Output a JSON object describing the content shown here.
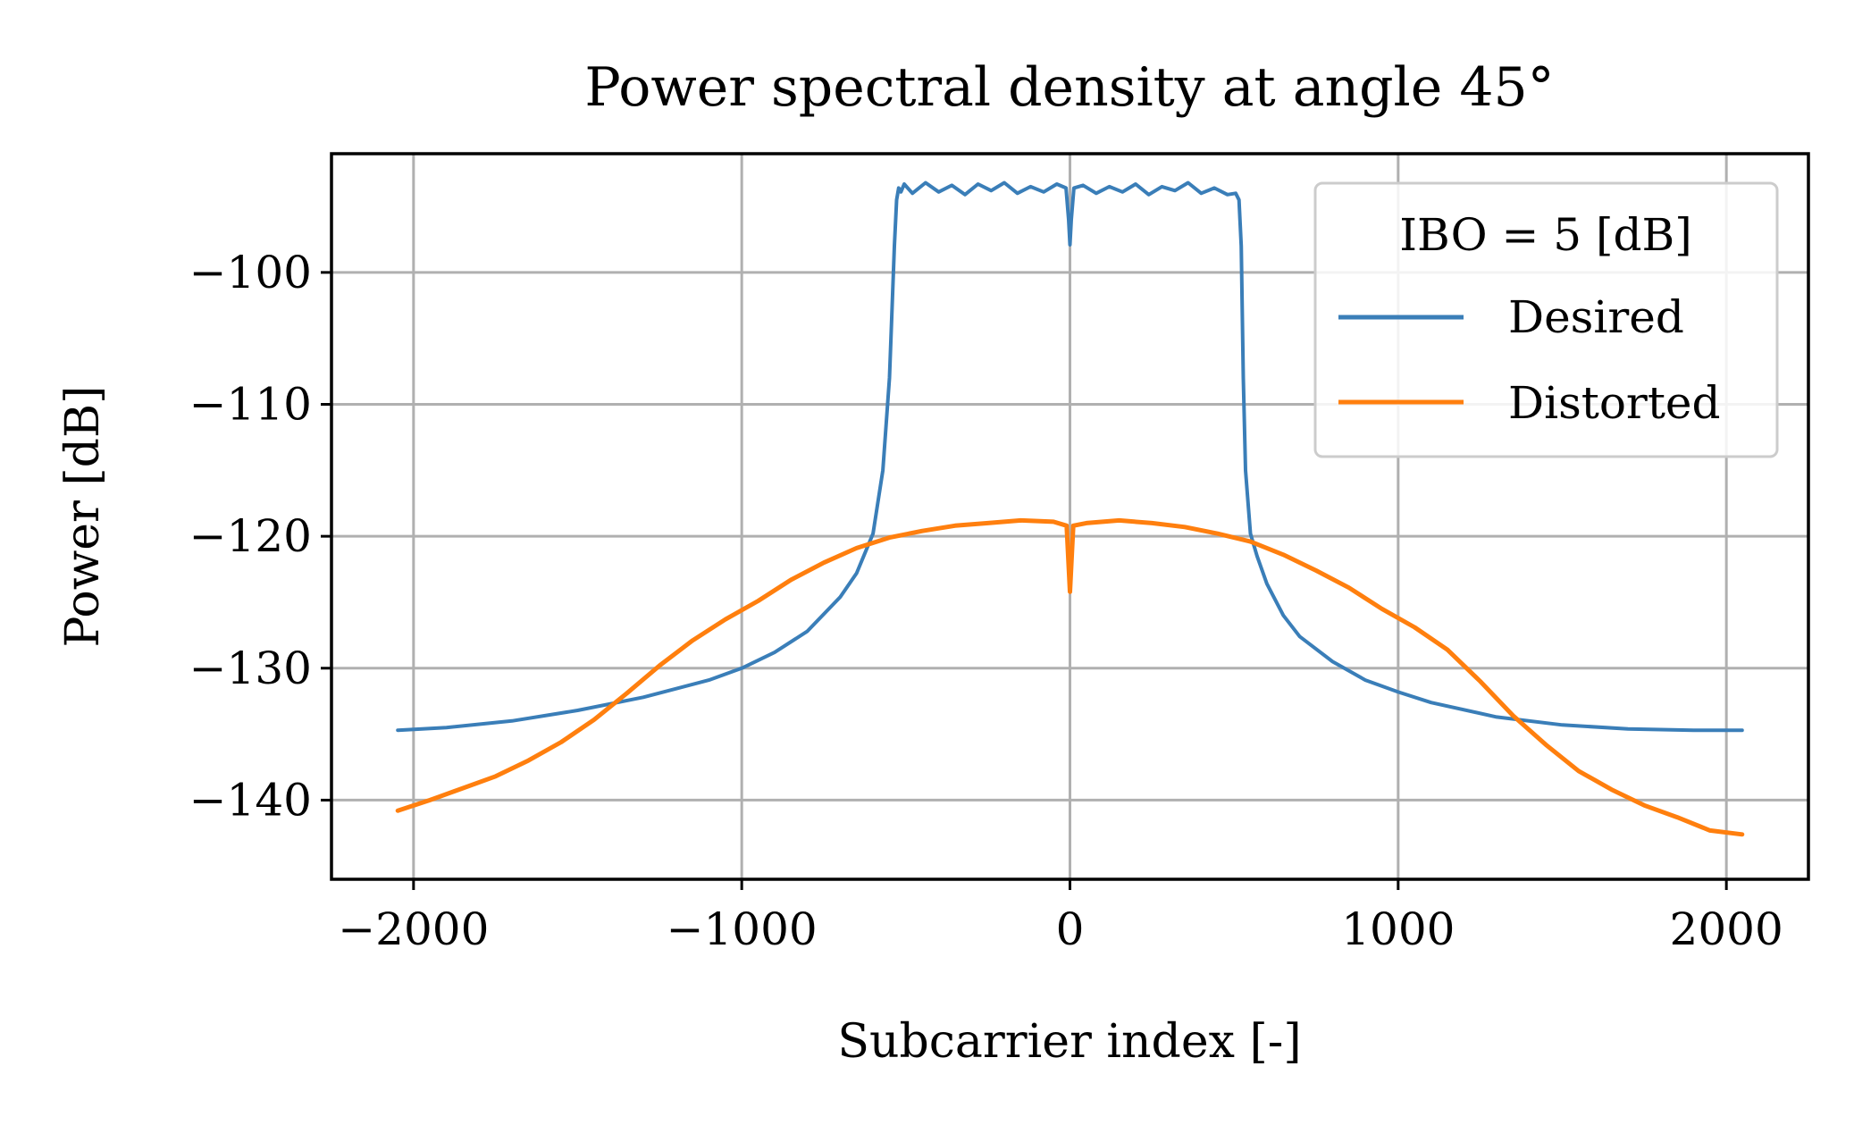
{
  "chart_data": {
    "type": "line",
    "title": "Power spectral density at angle 45°",
    "xlabel": "Subcarrier index [-]",
    "ylabel": "Power [dB]",
    "xlim": [
      -2250,
      2250
    ],
    "ylim": [
      -146,
      -91
    ],
    "xticks": [
      -2000,
      -1000,
      0,
      1000,
      2000
    ],
    "xtick_labels": [
      "−2000",
      "−1000",
      "0",
      "1000",
      "2000"
    ],
    "yticks": [
      -100,
      -110,
      -120,
      -130,
      -140
    ],
    "ytick_labels": [
      "−100",
      "−110",
      "−120",
      "−130",
      "−140"
    ],
    "grid": true,
    "legend": {
      "title": "IBO = 5 [dB]",
      "placement": "top-right"
    },
    "series": [
      {
        "name": "Desired",
        "color": "#3a7eb8",
        "x": [
          -2048,
          -1900,
          -1700,
          -1500,
          -1300,
          -1100,
          -1000,
          -900,
          -800,
          -700,
          -650,
          -600,
          -570,
          -550,
          -535,
          -528,
          -522,
          -515,
          -505,
          -480,
          -440,
          -400,
          -360,
          -320,
          -280,
          -240,
          -200,
          -160,
          -120,
          -80,
          -40,
          -12,
          -4,
          0,
          4,
          12,
          40,
          80,
          120,
          160,
          200,
          240,
          280,
          320,
          360,
          400,
          440,
          480,
          505,
          515,
          522,
          528,
          535,
          550,
          570,
          600,
          650,
          700,
          800,
          900,
          1000,
          1100,
          1300,
          1500,
          1700,
          1900,
          2048
        ],
        "y": [
          -134.7,
          -134.5,
          -134.0,
          -133.2,
          -132.2,
          -130.9,
          -130.0,
          -128.8,
          -127.2,
          -124.6,
          -122.8,
          -119.8,
          -115.0,
          -108.0,
          -98.0,
          -94.5,
          -93.6,
          -93.9,
          -93.3,
          -94.0,
          -93.2,
          -93.9,
          -93.4,
          -94.1,
          -93.3,
          -93.8,
          -93.2,
          -94.0,
          -93.5,
          -93.9,
          -93.3,
          -93.6,
          -96.0,
          -97.9,
          -96.0,
          -93.6,
          -93.4,
          -94.0,
          -93.5,
          -93.9,
          -93.3,
          -94.1,
          -93.5,
          -93.8,
          -93.2,
          -94.0,
          -93.6,
          -94.1,
          -94.0,
          -94.5,
          -98.0,
          -108.0,
          -115.0,
          -119.8,
          -121.5,
          -123.6,
          -126.0,
          -127.6,
          -129.5,
          -130.9,
          -131.8,
          -132.6,
          -133.7,
          -134.3,
          -134.6,
          -134.7,
          -134.7
        ]
      },
      {
        "name": "Distorted",
        "color": "#ff7f0e",
        "x": [
          -2048,
          -1950,
          -1850,
          -1750,
          -1650,
          -1550,
          -1450,
          -1350,
          -1250,
          -1150,
          -1050,
          -950,
          -850,
          -750,
          -650,
          -550,
          -450,
          -350,
          -250,
          -150,
          -50,
          -10,
          0,
          10,
          50,
          150,
          250,
          350,
          450,
          550,
          650,
          750,
          850,
          950,
          1050,
          1150,
          1250,
          1350,
          1450,
          1550,
          1650,
          1750,
          1850,
          1950,
          2048
        ],
        "y": [
          -140.8,
          -140.0,
          -139.1,
          -138.2,
          -137.0,
          -135.6,
          -133.9,
          -131.9,
          -129.8,
          -127.9,
          -126.3,
          -124.9,
          -123.3,
          -122.0,
          -120.9,
          -120.1,
          -119.6,
          -119.2,
          -119.0,
          -118.8,
          -118.9,
          -119.2,
          -124.2,
          -119.2,
          -119.0,
          -118.8,
          -119.0,
          -119.3,
          -119.8,
          -120.4,
          -121.4,
          -122.6,
          -123.9,
          -125.5,
          -126.9,
          -128.6,
          -131.0,
          -133.6,
          -135.8,
          -137.8,
          -139.2,
          -140.4,
          -141.3,
          -142.3,
          -142.6
        ]
      }
    ]
  }
}
